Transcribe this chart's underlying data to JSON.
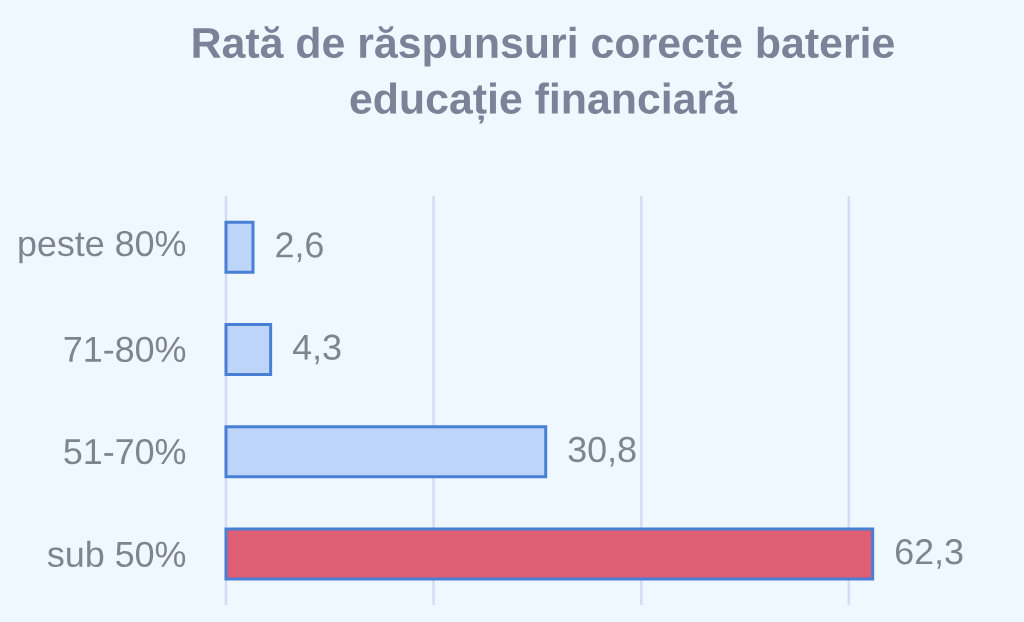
{
  "chart_data": {
    "type": "bar",
    "orientation": "horizontal",
    "title": "Rată de răspunsuri corecte baterie educație financiară",
    "categories": [
      "peste 80%",
      "71-80%",
      "51-70%",
      "sub 50%"
    ],
    "values": [
      2.6,
      4.3,
      30.8,
      62.3
    ],
    "value_labels": [
      "2,6",
      "4,3",
      "30,8",
      "62,3"
    ],
    "colors": [
      "#bcd5f8",
      "#bcd5f8",
      "#bcd5f8",
      "#de5e73"
    ],
    "xticks": [
      {
        "value": 0,
        "label": null
      },
      {
        "value": 20,
        "label": null
      },
      {
        "value": 40,
        "label": null
      },
      {
        "value": 60,
        "label": null
      }
    ],
    "tick_labels": "y",
    "grid": "x"
  }
}
